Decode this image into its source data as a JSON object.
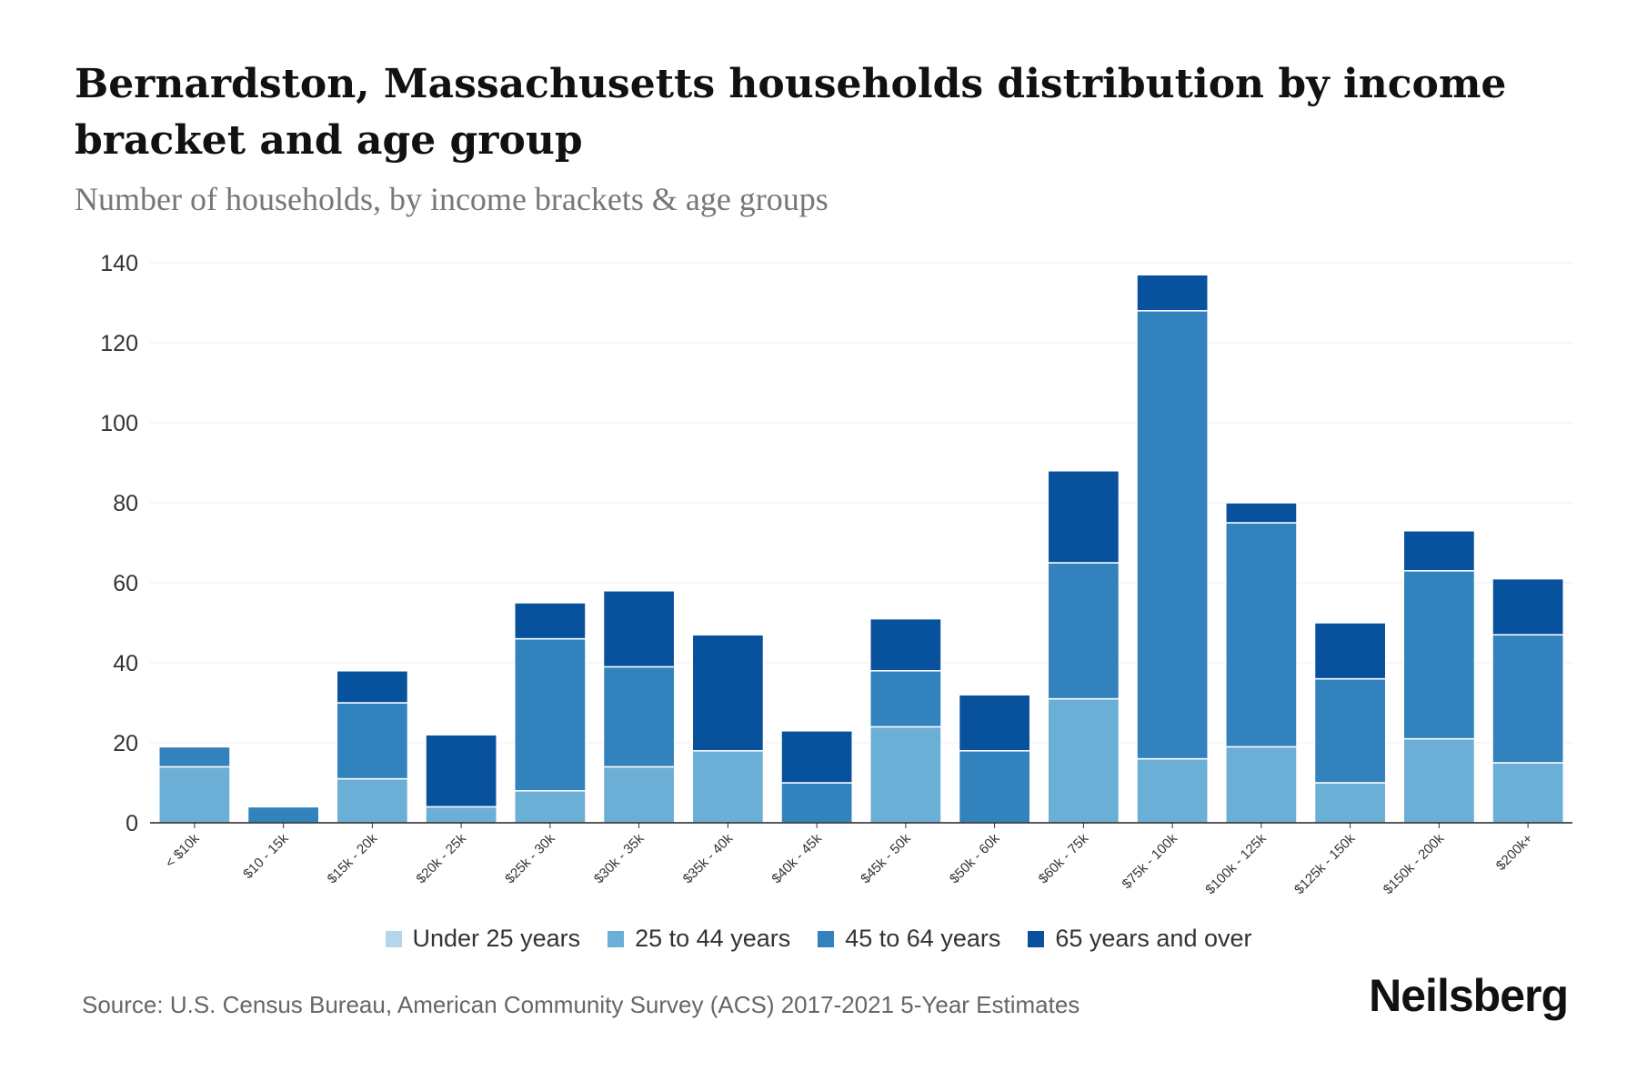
{
  "chart_data": {
    "type": "bar",
    "stacked": true,
    "title": "Bernardston, Massachusetts households distribution by income bracket and age group",
    "subtitle": "Number of households, by income brackets & age groups",
    "xlabel": "",
    "ylabel": "",
    "ylim": [
      0,
      140
    ],
    "yticks": [
      0,
      20,
      40,
      60,
      80,
      100,
      120,
      140
    ],
    "grid": true,
    "legend_position": "bottom",
    "categories": [
      "< $10k",
      "$10 - 15k",
      "$15k - 20k",
      "$20k - 25k",
      "$25k - 30k",
      "$30k - 35k",
      "$35k - 40k",
      "$40k - 45k",
      "$45k - 50k",
      "$50k - 60k",
      "$60k - 75k",
      "$75k - 100k",
      "$100k - 125k",
      "$125k - 150k",
      "$150k - 200k",
      "$200k+"
    ],
    "series": [
      {
        "name": "Under 25 years",
        "color": "#b3d7ea",
        "values": [
          0,
          0,
          0,
          0,
          0,
          0,
          0,
          0,
          0,
          0,
          0,
          0,
          0,
          0,
          0,
          0
        ]
      },
      {
        "name": "25 to 44 years",
        "color": "#6baed6",
        "values": [
          14,
          0,
          11,
          4,
          8,
          14,
          18,
          0,
          24,
          0,
          31,
          16,
          19,
          10,
          21,
          15
        ]
      },
      {
        "name": "45 to 64 years",
        "color": "#3182bd",
        "values": [
          5,
          4,
          19,
          0,
          38,
          25,
          0,
          10,
          14,
          18,
          34,
          112,
          56,
          26,
          42,
          32
        ]
      },
      {
        "name": "65 years and over",
        "color": "#08519c",
        "values": [
          0,
          0,
          8,
          18,
          9,
          19,
          29,
          13,
          13,
          14,
          23,
          9,
          5,
          14,
          10,
          14
        ]
      }
    ]
  },
  "source": "Source: U.S. Census Bureau, American Community Survey (ACS) 2017-2021 5-Year Estimates",
  "brand": "Neilsberg"
}
